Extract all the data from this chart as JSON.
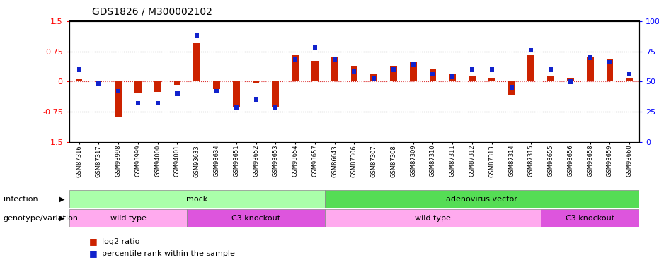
{
  "title": "GDS1826 / M300002102",
  "samples": [
    "GSM87316",
    "GSM87317",
    "GSM93998",
    "GSM93999",
    "GSM94000",
    "GSM94001",
    "GSM93633",
    "GSM93634",
    "GSM93651",
    "GSM93652",
    "GSM93653",
    "GSM93654",
    "GSM93657",
    "GSM86643",
    "GSM87306",
    "GSM87307",
    "GSM87308",
    "GSM87309",
    "GSM87310",
    "GSM87311",
    "GSM87312",
    "GSM87313",
    "GSM87314",
    "GSM87315",
    "GSM93655",
    "GSM93656",
    "GSM93658",
    "GSM93659",
    "GSM93660"
  ],
  "log2_ratio": [
    0.05,
    -0.02,
    -0.88,
    -0.3,
    -0.25,
    -0.08,
    0.95,
    -0.18,
    -0.62,
    -0.05,
    -0.62,
    0.65,
    0.52,
    0.6,
    0.38,
    0.18,
    0.4,
    0.48,
    0.3,
    0.18,
    0.15,
    0.1,
    -0.35,
    0.65,
    0.15,
    0.08,
    0.6,
    0.55,
    0.08
  ],
  "percentile_rank": [
    60,
    48,
    42,
    32,
    32,
    40,
    88,
    42,
    28,
    35,
    28,
    68,
    78,
    68,
    58,
    52,
    60,
    64,
    56,
    54,
    60,
    60,
    45,
    76,
    60,
    50,
    70,
    66,
    56
  ],
  "infection_groups": [
    {
      "label": "mock",
      "start": 0,
      "end": 13,
      "color": "#AAFFAA"
    },
    {
      "label": "adenovirus vector",
      "start": 13,
      "end": 29,
      "color": "#55DD55"
    }
  ],
  "genotype_groups": [
    {
      "label": "wild type",
      "start": 0,
      "end": 6,
      "color": "#FFAAEE"
    },
    {
      "label": "C3 knockout",
      "start": 6,
      "end": 13,
      "color": "#DD55DD"
    },
    {
      "label": "wild type",
      "start": 13,
      "end": 24,
      "color": "#FFAAEE"
    },
    {
      "label": "C3 knockout",
      "start": 24,
      "end": 29,
      "color": "#DD55DD"
    }
  ],
  "bar_color_red": "#CC2200",
  "bar_color_blue": "#1122CC",
  "ylim_left": [
    -1.5,
    1.5
  ],
  "ylim_right": [
    0,
    100
  ],
  "yticks_left": [
    -1.5,
    -0.75,
    0,
    0.75,
    1.5
  ],
  "yticks_right": [
    0,
    25,
    50,
    75,
    100
  ],
  "hlines": [
    0.75,
    -0.75
  ],
  "hline_zero_color": "#DD3333",
  "background_color": "#ffffff"
}
